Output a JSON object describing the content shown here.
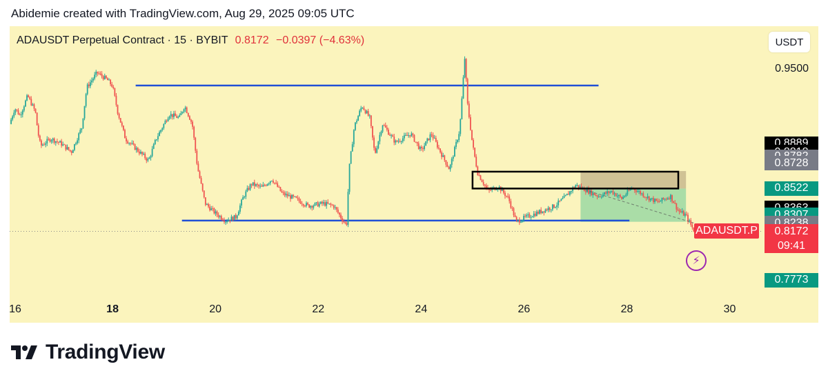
{
  "credit": "Abidemie created with TradingView.com, Aug 29, 2025 09:05 UTC",
  "header": {
    "symbol_info": "ADAUSDT Perpetual Contract · 15 · BYBIT",
    "last_price": "0.8172",
    "change": "−0.0397 (−4.63%)",
    "currency_button": "USDT"
  },
  "brand": {
    "name": "TradingView"
  },
  "colors": {
    "background": "#fbf4bd",
    "level_line": "#1f4fd6",
    "candle_up": "#26a69a",
    "candle_down": "#ef5350",
    "bullish_zone": "#8fd6a0",
    "supply_zone": "#c8b88e",
    "last_price": "#f23645"
  },
  "chart_data": {
    "type": "candlestick",
    "title": "ADAUSDT Perpetual Contract · 15 · BYBIT",
    "x_ticks": [
      "16",
      "18",
      "20",
      "22",
      "24",
      "26",
      "28",
      "30"
    ],
    "x_tick_days": [
      16,
      18,
      20,
      22,
      24,
      26,
      28,
      30
    ],
    "x_range_days": [
      16.0,
      30.65
    ],
    "y_range": [
      0.765,
      0.985
    ],
    "y_axis_labels": [
      {
        "text": "0.9500",
        "value": 0.95,
        "style": "plain"
      },
      {
        "text": "0.8889",
        "value": 0.8889,
        "style": "black"
      },
      {
        "text": "0.8818",
        "value": 0.8818,
        "style": "black"
      },
      {
        "text": "0.8782",
        "value": 0.8782,
        "style": "gray"
      },
      {
        "text": "0.8728",
        "value": 0.8728,
        "style": "gray"
      },
      {
        "text": "0.8522",
        "value": 0.8522,
        "style": "green"
      },
      {
        "text": "0.8363",
        "value": 0.8363,
        "style": "black"
      },
      {
        "text": "0.8307",
        "value": 0.8307,
        "style": "green"
      },
      {
        "text": "0.8238",
        "value": 0.8238,
        "style": "gray"
      },
      {
        "text": "0.7773",
        "value": 0.7773,
        "style": "green"
      }
    ],
    "last": {
      "value": 0.8172,
      "label": "0.8172",
      "countdown": "09:41",
      "symbol_tag": "ADAUSDT.P"
    },
    "horizontal_levels": [
      {
        "value": 0.9365,
        "from_day": 18.45,
        "to_day": 27.45
      },
      {
        "value": 0.826,
        "from_day": 19.35,
        "to_day": 28.05
      }
    ],
    "zones": [
      {
        "kind": "supply_box",
        "top": 0.866,
        "bottom": 0.8522,
        "from_day": 25.0,
        "to_day": 29.0
      },
      {
        "kind": "bullish_position",
        "top": 0.8522,
        "bottom": 0.825,
        "from_day": 27.1,
        "to_day": 29.15
      },
      {
        "kind": "supply_shading",
        "top": 0.8665,
        "bottom": 0.8522,
        "from_day": 27.1,
        "to_day": 29.15
      }
    ],
    "price_path": [
      [
        16.0,
        0.905
      ],
      [
        16.1,
        0.918
      ],
      [
        16.2,
        0.912
      ],
      [
        16.35,
        0.928
      ],
      [
        16.5,
        0.915
      ],
      [
        16.55,
        0.898
      ],
      [
        16.6,
        0.887
      ],
      [
        16.8,
        0.893
      ],
      [
        17.0,
        0.889
      ],
      [
        17.2,
        0.882
      ],
      [
        17.4,
        0.902
      ],
      [
        17.5,
        0.935
      ],
      [
        17.7,
        0.947
      ],
      [
        17.9,
        0.941
      ],
      [
        18.0,
        0.936
      ],
      [
        18.1,
        0.915
      ],
      [
        18.25,
        0.893
      ],
      [
        18.45,
        0.885
      ],
      [
        18.7,
        0.875
      ],
      [
        18.85,
        0.893
      ],
      [
        19.1,
        0.913
      ],
      [
        19.3,
        0.91
      ],
      [
        19.4,
        0.92
      ],
      [
        19.55,
        0.905
      ],
      [
        19.65,
        0.87
      ],
      [
        19.8,
        0.84
      ],
      [
        20.0,
        0.832
      ],
      [
        20.2,
        0.826
      ],
      [
        20.4,
        0.829
      ],
      [
        20.55,
        0.846
      ],
      [
        20.7,
        0.856
      ],
      [
        20.9,
        0.853
      ],
      [
        21.1,
        0.86
      ],
      [
        21.3,
        0.848
      ],
      [
        21.55,
        0.844
      ],
      [
        21.8,
        0.838
      ],
      [
        22.1,
        0.84
      ],
      [
        22.3,
        0.838
      ],
      [
        22.45,
        0.828
      ],
      [
        22.55,
        0.822
      ],
      [
        22.6,
        0.868
      ],
      [
        22.7,
        0.903
      ],
      [
        22.85,
        0.92
      ],
      [
        23.0,
        0.91
      ],
      [
        23.1,
        0.88
      ],
      [
        23.25,
        0.905
      ],
      [
        23.5,
        0.89
      ],
      [
        23.8,
        0.897
      ],
      [
        24.0,
        0.883
      ],
      [
        24.2,
        0.897
      ],
      [
        24.4,
        0.88
      ],
      [
        24.55,
        0.868
      ],
      [
        24.75,
        0.9
      ],
      [
        24.85,
        0.96
      ],
      [
        24.9,
        0.922
      ],
      [
        25.0,
        0.888
      ],
      [
        25.1,
        0.865
      ],
      [
        25.3,
        0.85
      ],
      [
        25.5,
        0.854
      ],
      [
        25.7,
        0.844
      ],
      [
        25.85,
        0.825
      ],
      [
        26.0,
        0.828
      ],
      [
        26.3,
        0.833
      ],
      [
        26.6,
        0.838
      ],
      [
        26.8,
        0.845
      ],
      [
        27.0,
        0.855
      ],
      [
        27.2,
        0.851
      ],
      [
        27.45,
        0.846
      ],
      [
        27.7,
        0.85
      ],
      [
        27.9,
        0.844
      ],
      [
        28.1,
        0.853
      ],
      [
        28.4,
        0.845
      ],
      [
        28.6,
        0.841
      ],
      [
        28.85,
        0.846
      ],
      [
        29.0,
        0.834
      ],
      [
        29.15,
        0.83
      ],
      [
        29.3,
        0.818
      ],
      [
        29.38,
        0.8172
      ]
    ],
    "forecast_dashed": [
      [
        27.1,
        0.8522
      ],
      [
        29.3,
        0.824
      ]
    ]
  }
}
